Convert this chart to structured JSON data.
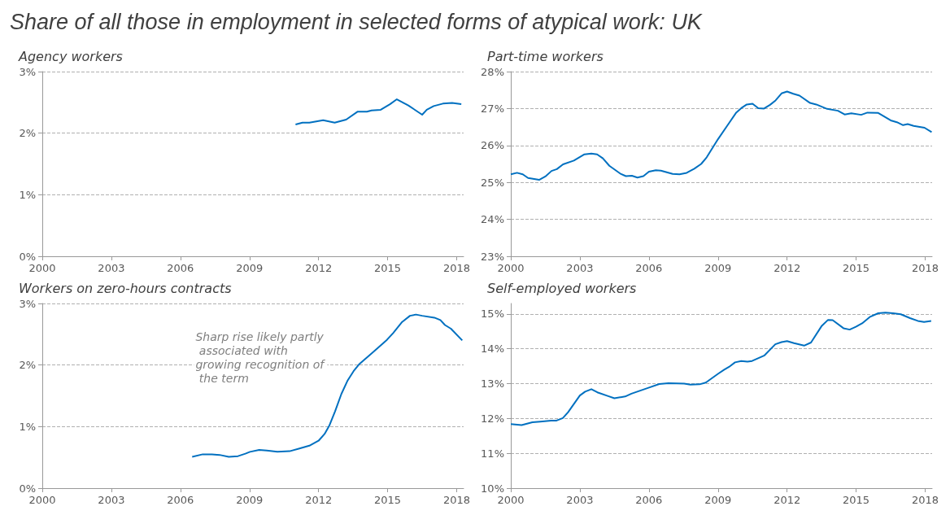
{
  "chart_data": [
    {
      "type": "line",
      "title": "Share of all those in employment in selected forms of atypical work: UK",
      "subtitle": "Agency workers",
      "grid": "y",
      "marker": "none",
      "line_style": "solid",
      "xlim": [
        2000,
        2018.3
      ],
      "xticks": [
        2000,
        2003,
        2006,
        2009,
        2012,
        2015,
        2018
      ],
      "ylim": [
        0,
        3
      ],
      "yticks": [
        {
          "value": 0,
          "label": "0%"
        },
        {
          "value": 1,
          "label": "1%"
        },
        {
          "value": 2,
          "label": "2%"
        },
        {
          "value": 3,
          "label": "3%"
        }
      ],
      "series": [
        {
          "color": "#0070c0",
          "x": [
            2011.0,
            2011.3,
            2011.6,
            2012.2,
            2012.7,
            2013.2,
            2013.7,
            2014.1,
            2014.3,
            2014.7,
            2015.1,
            2015.4,
            2015.9,
            2016.5,
            2016.7,
            2017.0,
            2017.4,
            2017.8,
            2018.2
          ],
          "values": [
            2.14,
            2.17,
            2.17,
            2.21,
            2.17,
            2.22,
            2.35,
            2.35,
            2.37,
            2.38,
            2.47,
            2.55,
            2.45,
            2.3,
            2.38,
            2.44,
            2.48,
            2.49,
            2.47
          ]
        }
      ]
    },
    {
      "type": "line",
      "subtitle": "Part-time workers",
      "grid": "y",
      "marker": "none",
      "line_style": "solid",
      "xlim": [
        2000,
        2018.3
      ],
      "xticks": [
        2000,
        2003,
        2006,
        2009,
        2012,
        2015,
        2018
      ],
      "ylim": [
        23,
        28
      ],
      "yticks": [
        {
          "value": 23,
          "label": "23%"
        },
        {
          "value": 24,
          "label": "24%"
        },
        {
          "value": 25,
          "label": "25%"
        },
        {
          "value": 26,
          "label": "26%"
        },
        {
          "value": 27,
          "label": "27%"
        },
        {
          "value": 28,
          "label": "28%"
        }
      ],
      "series": [
        {
          "color": "#0070c0",
          "x": [
            2000.0,
            2000.27,
            2000.52,
            2000.75,
            2001.23,
            2001.5,
            2001.77,
            2002.0,
            2002.27,
            2002.74,
            2003.2,
            2003.5,
            2003.75,
            2004.0,
            2004.28,
            2004.75,
            2005.0,
            2005.26,
            2005.5,
            2005.76,
            2006.0,
            2006.3,
            2006.52,
            2007.03,
            2007.33,
            2007.64,
            2007.97,
            2008.27,
            2008.51,
            2009.0,
            2009.45,
            2009.78,
            2010.05,
            2010.25,
            2010.5,
            2010.75,
            2011.0,
            2011.26,
            2011.5,
            2011.76,
            2012.0,
            2012.27,
            2012.54,
            2013.0,
            2013.27,
            2013.74,
            2014.21,
            2014.5,
            2014.79,
            2015.22,
            2015.49,
            2015.96,
            2016.5,
            2016.77,
            2017.04,
            2017.24,
            2017.5,
            2017.97,
            2018.28
          ],
          "values": [
            25.22,
            25.26,
            25.22,
            25.12,
            25.07,
            25.16,
            25.31,
            25.36,
            25.49,
            25.59,
            25.76,
            25.78,
            25.76,
            25.65,
            25.45,
            25.24,
            25.17,
            25.18,
            25.13,
            25.17,
            25.29,
            25.33,
            25.32,
            25.23,
            25.22,
            25.26,
            25.37,
            25.5,
            25.68,
            26.17,
            26.58,
            26.88,
            27.03,
            27.11,
            27.13,
            27.01,
            27.0,
            27.1,
            27.22,
            27.41,
            27.46,
            27.4,
            27.35,
            27.15,
            27.11,
            26.99,
            26.94,
            26.84,
            26.87,
            26.83,
            26.89,
            26.88,
            26.68,
            26.63,
            26.55,
            26.58,
            26.53,
            26.48,
            26.36
          ]
        }
      ]
    },
    {
      "type": "line",
      "subtitle": "Workers on zero-hours contracts",
      "grid": "y",
      "marker": "none",
      "line_style": "solid",
      "annotations": [
        "Sharp rise likely partly associated with growing recognition of the term"
      ],
      "xlim": [
        2000,
        2018.3
      ],
      "xticks": [
        2000,
        2003,
        2006,
        2009,
        2012,
        2015,
        2018
      ],
      "ylim": [
        0,
        3
      ],
      "yticks": [
        {
          "value": 0,
          "label": "0%"
        },
        {
          "value": 1,
          "label": "1%"
        },
        {
          "value": 2,
          "label": "2%"
        },
        {
          "value": 3,
          "label": "3%"
        }
      ],
      "series": [
        {
          "color": "#0070c0",
          "x": [
            2006.51,
            2006.97,
            2007.37,
            2007.7,
            2008.1,
            2008.5,
            2008.82,
            2009.02,
            2009.42,
            2009.75,
            2010.21,
            2010.74,
            2011.14,
            2011.6,
            2012.0,
            2012.26,
            2012.46,
            2012.72,
            2012.99,
            2013.25,
            2013.52,
            2013.78,
            2014.31,
            2014.64,
            2014.97,
            2015.24,
            2015.63,
            2015.97,
            2016.23,
            2016.5,
            2017.03,
            2017.29,
            2017.49,
            2017.75,
            2018.24
          ],
          "values": [
            0.51,
            0.55,
            0.55,
            0.54,
            0.51,
            0.52,
            0.56,
            0.59,
            0.62,
            0.61,
            0.59,
            0.6,
            0.64,
            0.69,
            0.77,
            0.88,
            1.01,
            1.25,
            1.53,
            1.74,
            1.9,
            2.02,
            2.19,
            2.3,
            2.41,
            2.52,
            2.7,
            2.8,
            2.82,
            2.8,
            2.77,
            2.73,
            2.65,
            2.59,
            2.4
          ]
        }
      ]
    },
    {
      "type": "line",
      "subtitle": "Self-employed workers",
      "grid": "y",
      "marker": "none",
      "line_style": "solid",
      "xlim": [
        2000,
        2018.3
      ],
      "xticks": [
        2000,
        2003,
        2006,
        2009,
        2012,
        2015,
        2018
      ],
      "ylim": [
        10,
        15.3
      ],
      "yticks": [
        {
          "value": 10,
          "label": "10%"
        },
        {
          "value": 11,
          "label": "11%"
        },
        {
          "value": 12,
          "label": "12%"
        },
        {
          "value": 13,
          "label": "13%"
        },
        {
          "value": 14,
          "label": "14%"
        },
        {
          "value": 15,
          "label": "15%"
        }
      ],
      "series": [
        {
          "color": "#0070c0",
          "x": [
            2000.0,
            2000.47,
            2000.94,
            2001.28,
            2001.75,
            2001.99,
            2002.26,
            2002.49,
            2003.0,
            2003.23,
            2003.5,
            2003.76,
            2004.23,
            2004.5,
            2004.97,
            2005.24,
            2005.98,
            2006.45,
            2006.85,
            2007.53,
            2007.8,
            2008.2,
            2008.47,
            2009.0,
            2009.27,
            2009.48,
            2009.74,
            2010.01,
            2010.28,
            2010.48,
            2011.02,
            2011.49,
            2011.76,
            2012.0,
            2012.3,
            2012.74,
            2013.04,
            2013.51,
            2013.78,
            2013.98,
            2014.45,
            2014.72,
            2014.99,
            2015.26,
            2015.59,
            2015.96,
            2016.27,
            2016.6,
            2016.94,
            2017.34,
            2017.68,
            2017.95,
            2018.26
          ],
          "values": [
            11.84,
            11.81,
            11.89,
            11.91,
            11.94,
            11.94,
            12.01,
            12.18,
            12.66,
            12.77,
            12.84,
            12.75,
            12.64,
            12.58,
            12.63,
            12.71,
            12.88,
            12.99,
            13.01,
            13.0,
            12.97,
            12.98,
            13.03,
            13.28,
            13.4,
            13.48,
            13.61,
            13.65,
            13.63,
            13.65,
            13.81,
            14.13,
            14.19,
            14.22,
            14.16,
            14.09,
            14.18,
            14.66,
            14.83,
            14.82,
            14.59,
            14.55,
            14.63,
            14.73,
            14.91,
            15.02,
            15.04,
            15.02,
            14.99,
            14.88,
            14.8,
            14.77,
            14.8
          ]
        }
      ]
    }
  ]
}
